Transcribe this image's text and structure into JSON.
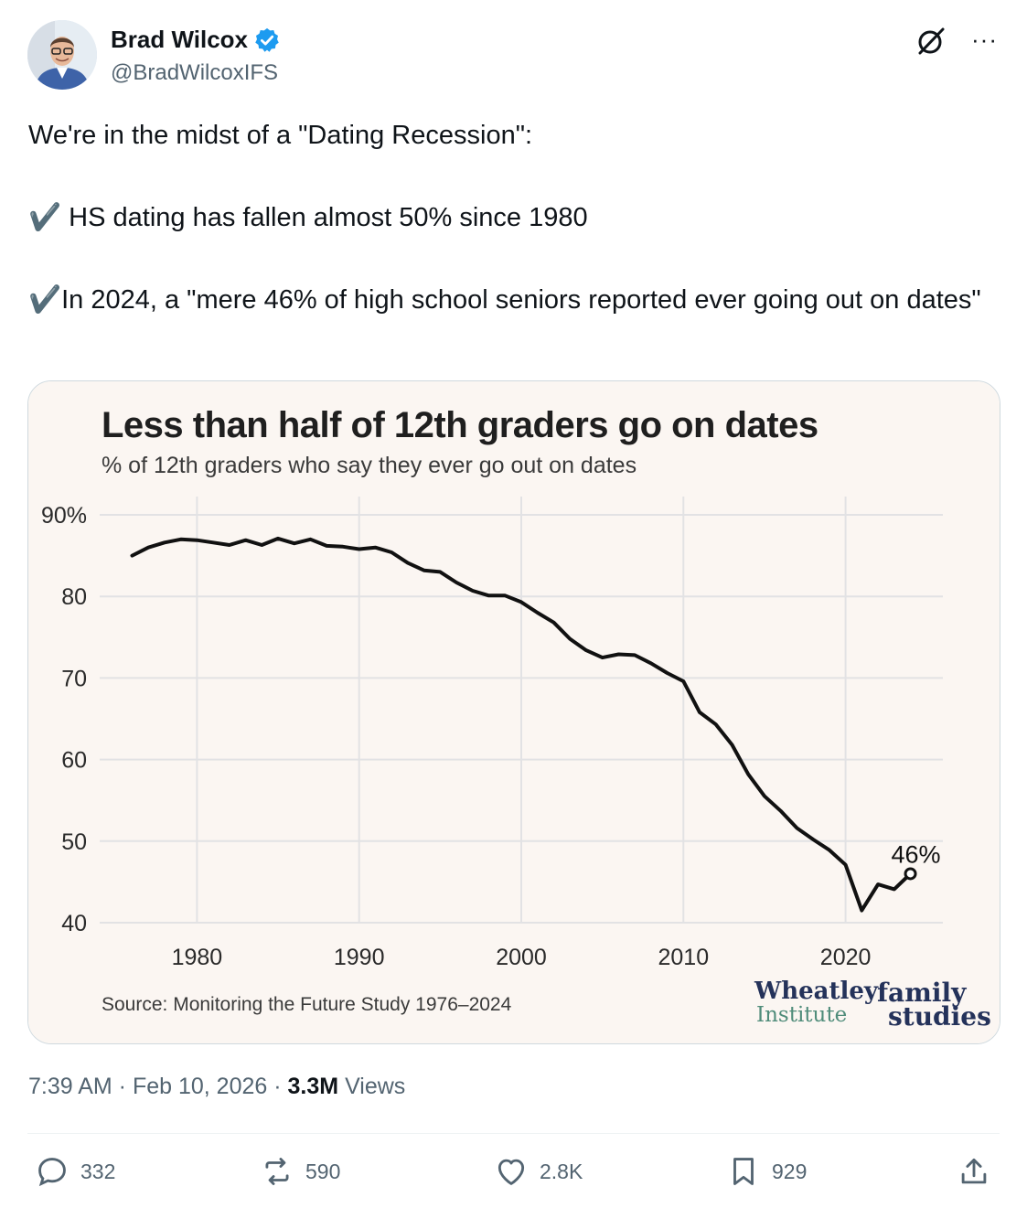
{
  "author": {
    "name": "Brad Wilcox",
    "handle": "@BradWilcoxIFS"
  },
  "tweet": {
    "line1": "We're in the midst of a \"Dating Recession\":",
    "line2": "✔️ HS dating has fallen almost 50% since 1980",
    "line3": "✔️In 2024, a \"mere 46% of high school seniors reported ever going out on dates\""
  },
  "chart_data": {
    "type": "line",
    "title": "Less than half of 12th graders go on dates",
    "subtitle": "% of 12th graders who say they ever go out on dates",
    "source": "Source: Monitoring the Future Study 1976–2024",
    "xlabel": "",
    "ylabel": "",
    "xlim": [
      1974,
      2026
    ],
    "ylim": [
      40,
      90
    ],
    "x_ticks": [
      1980,
      1990,
      2000,
      2010,
      2020
    ],
    "y_ticks": [
      40,
      50,
      60,
      70,
      80,
      90
    ],
    "y_tick_labels": [
      "40",
      "50",
      "60",
      "70",
      "80",
      "90%"
    ],
    "annotation": "46%",
    "background_color": "#fbf6f2",
    "line_color": "#111111",
    "series": [
      {
        "name": "% ever go out on dates",
        "x": [
          1976,
          1977,
          1978,
          1979,
          1980,
          1981,
          1982,
          1983,
          1984,
          1985,
          1986,
          1987,
          1988,
          1989,
          1990,
          1991,
          1992,
          1993,
          1994,
          1995,
          1996,
          1997,
          1998,
          1999,
          2000,
          2001,
          2002,
          2003,
          2004,
          2005,
          2006,
          2007,
          2008,
          2009,
          2010,
          2011,
          2012,
          2013,
          2014,
          2015,
          2016,
          2017,
          2018,
          2019,
          2020,
          2021,
          2022,
          2023,
          2024
        ],
        "values": [
          85,
          86,
          86.6,
          87,
          86.9,
          86.6,
          86.3,
          86.9,
          86.3,
          87.1,
          86.5,
          87,
          86.2,
          86.1,
          85.8,
          86,
          85.4,
          84.1,
          83.2,
          83,
          81.7,
          80.7,
          80.1,
          80.1,
          79.3,
          78,
          76.8,
          74.8,
          73.4,
          72.5,
          72.9,
          72.8,
          71.8,
          70.6,
          69.6,
          65.8,
          64.3,
          61.8,
          58.2,
          55.5,
          53.7,
          51.6,
          50.2,
          48.9,
          47.1,
          41.5,
          44.7,
          44.1,
          46
        ]
      }
    ]
  },
  "logos": {
    "wheatley_line1": "Wheatley",
    "wheatley_line2": "Institute",
    "family_line1": "family",
    "family_line2": "studies"
  },
  "meta": {
    "time": "7:39 AM",
    "date": "Feb 10, 2026",
    "views_count": "3.3M",
    "views_label": "Views"
  },
  "actions": {
    "replies": "332",
    "reposts": "590",
    "likes": "2.8K",
    "bookmarks": "929"
  },
  "colors": {
    "verified": "#1d9bf0",
    "secondary_text": "#536471"
  }
}
